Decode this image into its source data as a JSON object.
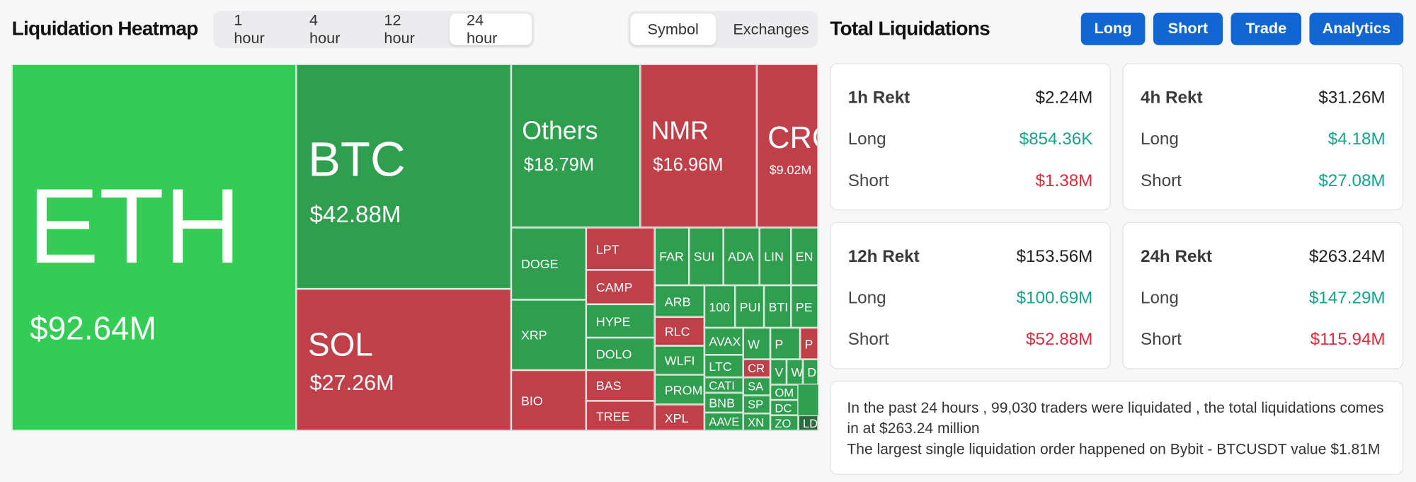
{
  "header": {
    "title": "Liquidation Heatmap",
    "time_tabs": [
      "1 hour",
      "4 hour",
      "12 hour",
      "24 hour"
    ],
    "view_tabs": [
      "Symbol",
      "Exchanges"
    ]
  },
  "heatmap": {
    "tiles": [
      {
        "symbol": "ETH",
        "value": "$92.64M"
      },
      {
        "symbol": "BTC",
        "value": "$42.88M"
      },
      {
        "symbol": "SOL",
        "value": "$27.26M"
      },
      {
        "symbol": "Others",
        "value": "$18.79M"
      },
      {
        "symbol": "NMR",
        "value": "$16.96M"
      },
      {
        "symbol": "CRO",
        "value": "$9.02M"
      },
      {
        "symbol": "DOGE"
      },
      {
        "symbol": "XRP"
      },
      {
        "symbol": "BIO"
      },
      {
        "symbol": "LPT"
      },
      {
        "symbol": "CAMP"
      },
      {
        "symbol": "HYPE"
      },
      {
        "symbol": "DOLO"
      },
      {
        "symbol": "BAS"
      },
      {
        "symbol": "TREE"
      },
      {
        "symbol": "FAR"
      },
      {
        "symbol": "SUI"
      },
      {
        "symbol": "ADA"
      },
      {
        "symbol": "LIN"
      },
      {
        "symbol": "EN"
      },
      {
        "symbol": "ARB"
      },
      {
        "symbol": "RLC"
      },
      {
        "symbol": "WLFI"
      },
      {
        "symbol": "PROMI"
      },
      {
        "symbol": "XPL"
      },
      {
        "symbol": "100"
      },
      {
        "symbol": "PUI"
      },
      {
        "symbol": "BTI"
      },
      {
        "symbol": "PE"
      },
      {
        "symbol": "AVAX"
      },
      {
        "symbol": "LTC"
      },
      {
        "symbol": "CATI"
      },
      {
        "symbol": "BNB"
      },
      {
        "symbol": "AAVE"
      },
      {
        "symbol": "W"
      },
      {
        "symbol": "P"
      },
      {
        "symbol": "P"
      },
      {
        "symbol": "CR"
      },
      {
        "symbol": "SA"
      },
      {
        "symbol": "SP"
      },
      {
        "symbol": "XN"
      },
      {
        "symbol": "V"
      },
      {
        "symbol": "W"
      },
      {
        "symbol": "D"
      },
      {
        "symbol": "OM"
      },
      {
        "symbol": "DC"
      },
      {
        "symbol": "ZO"
      },
      {
        "symbol": "LD"
      }
    ]
  },
  "panel": {
    "title": "Total Liquidations",
    "buttons": [
      "Long",
      "Short",
      "Trade",
      "Analytics"
    ],
    "cards": [
      {
        "title": "1h Rekt",
        "total": "$2.24M",
        "rows": [
          {
            "label": "Long",
            "value": "$854.36K"
          },
          {
            "label": "Short",
            "value": "$1.38M"
          }
        ]
      },
      {
        "title": "4h Rekt",
        "total": "$31.26M",
        "rows": [
          {
            "label": "Long",
            "value": "$4.18M"
          },
          {
            "label": "Short",
            "value": "$27.08M"
          }
        ]
      },
      {
        "title": "12h Rekt",
        "total": "$153.56M",
        "rows": [
          {
            "label": "Long",
            "value": "$100.69M"
          },
          {
            "label": "Short",
            "value": "$52.88M"
          }
        ]
      },
      {
        "title": "24h Rekt",
        "total": "$263.24M",
        "rows": [
          {
            "label": "Long",
            "value": "$147.29M"
          },
          {
            "label": "Short",
            "value": "$115.94M"
          }
        ]
      }
    ],
    "summary": [
      "In the past 24 hours , 99,030 traders were liquidated , the total liquidations comes in at $263.24 million",
      "The largest single liquidation order happened on Bybit - BTCUSDT value $1.81M"
    ]
  }
}
